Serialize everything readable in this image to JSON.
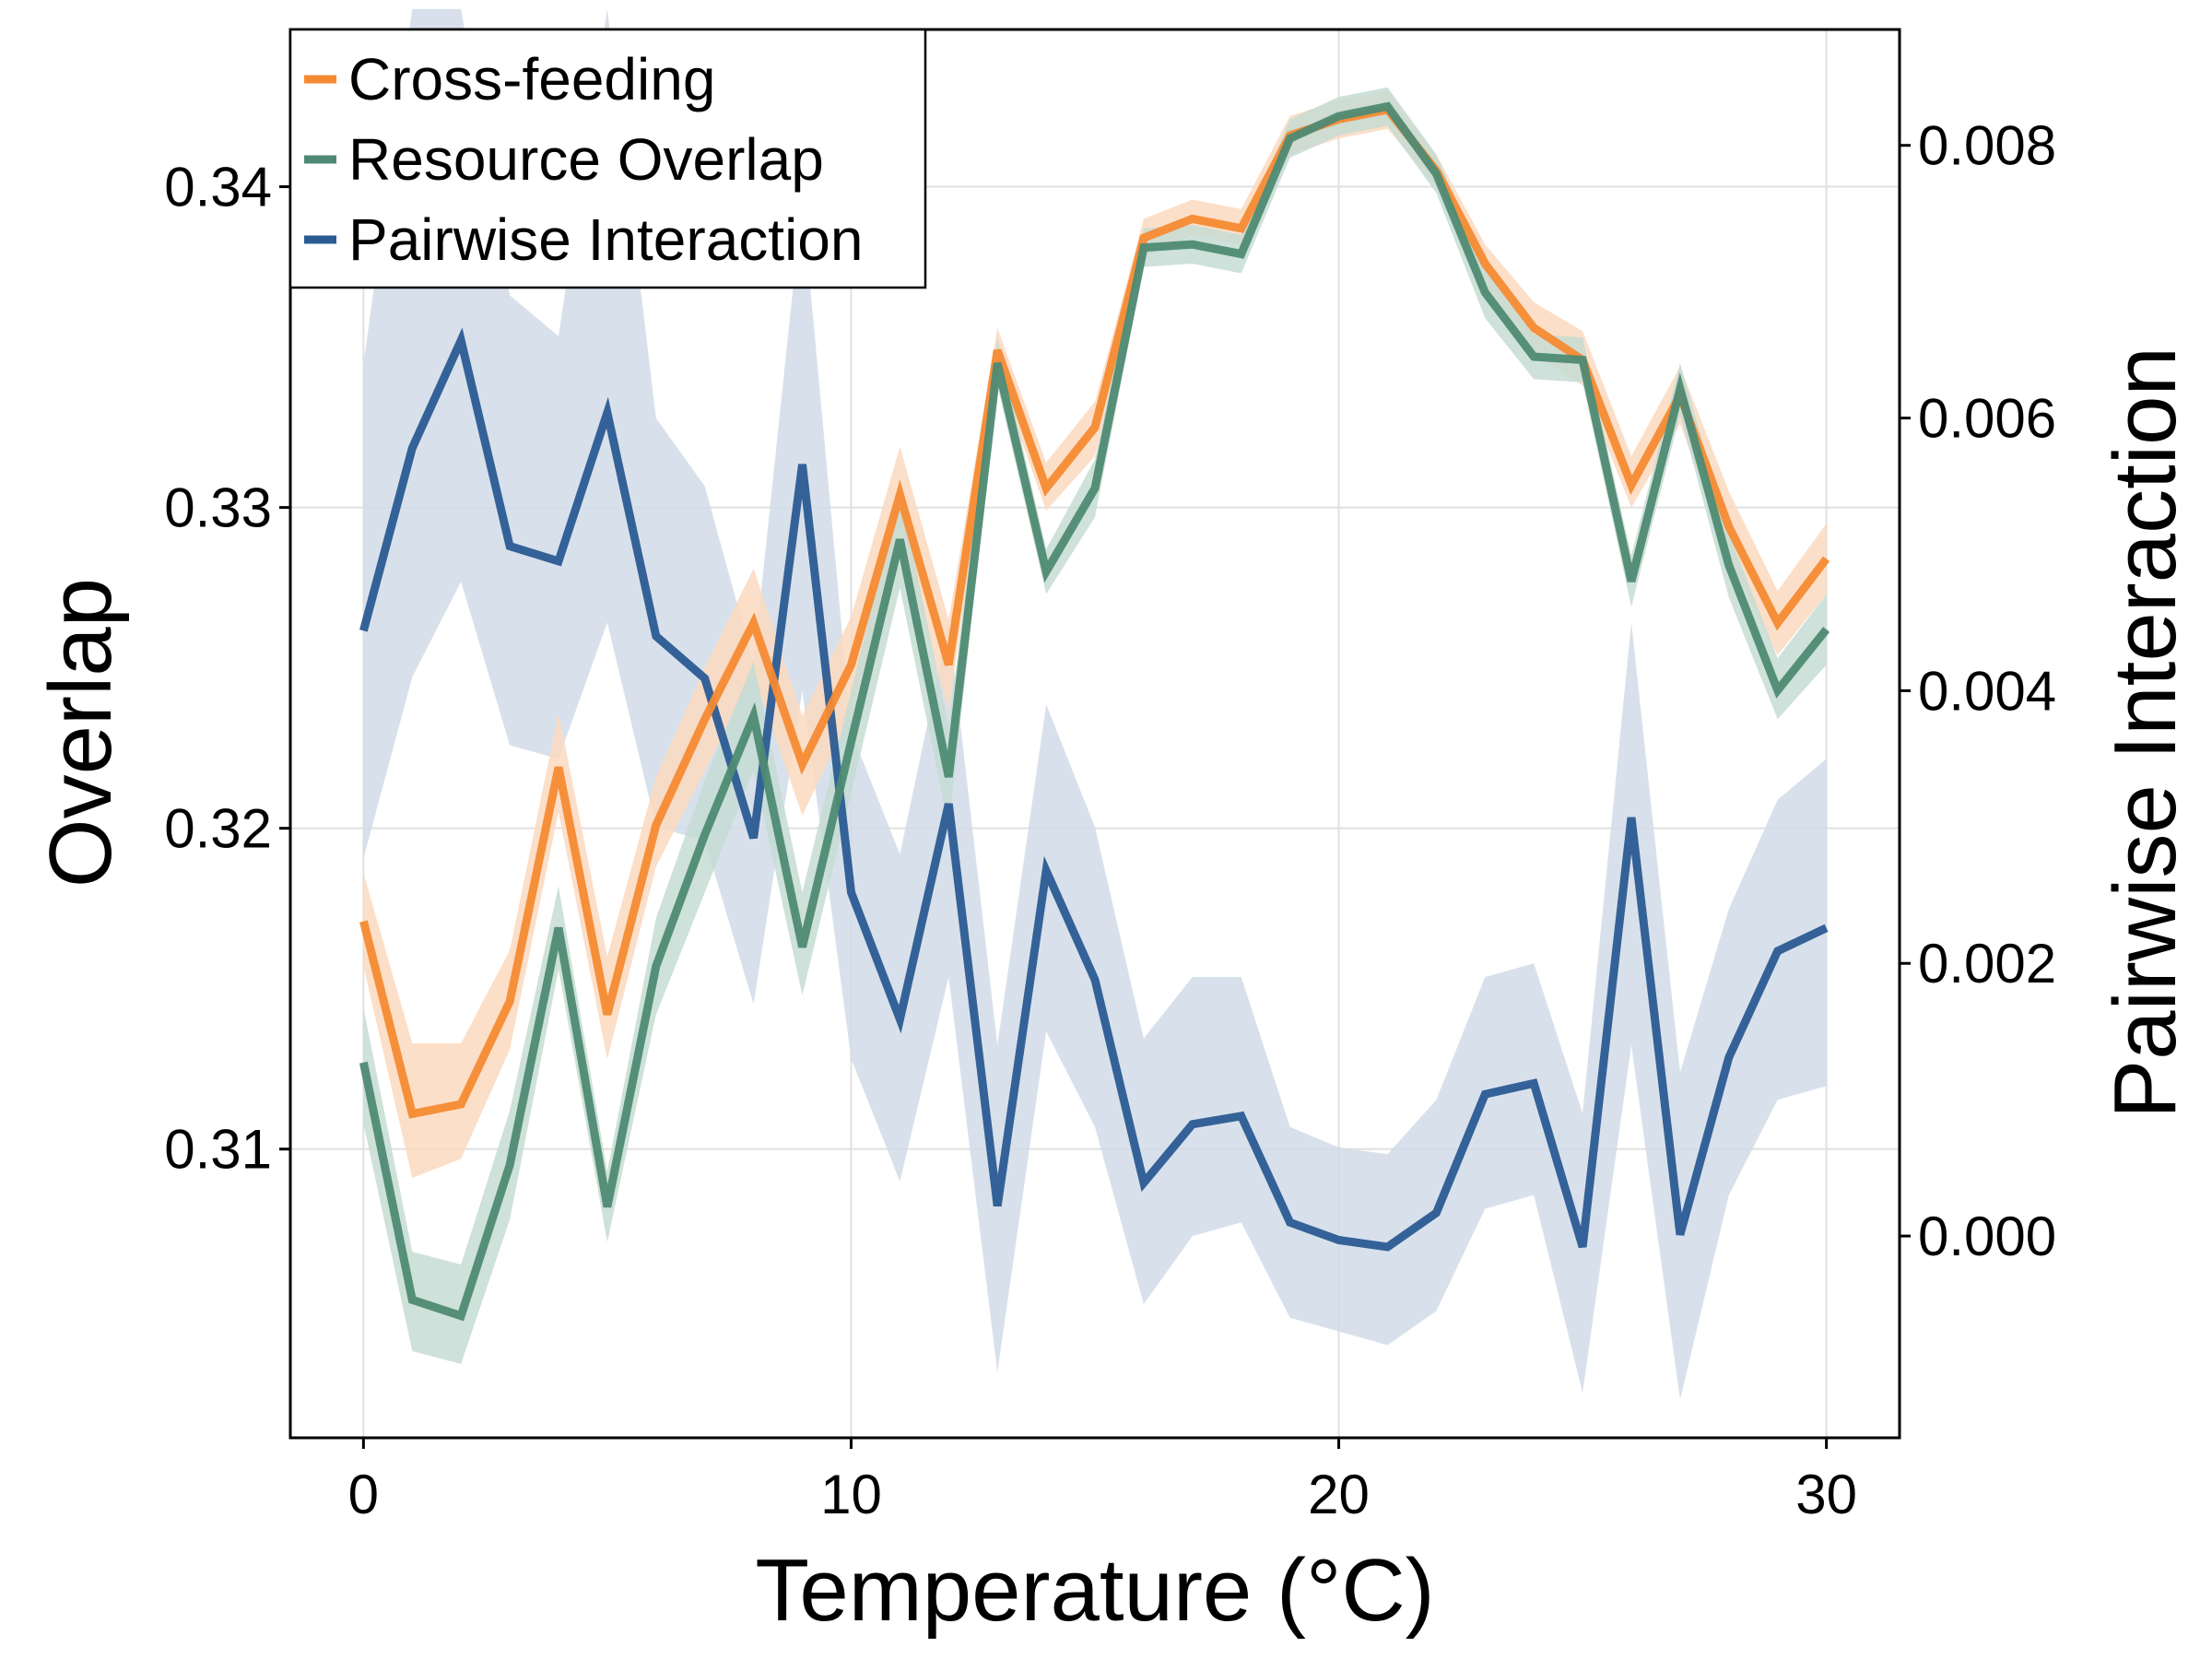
{
  "chart_data": {
    "type": "line",
    "xlabel": "Temperature (°C)",
    "ylabel": "Overlap",
    "y2label": "Pairwise Interaction",
    "xlim": [
      -1.5,
      31.5
    ],
    "ylim": [
      0.301,
      0.3449
    ],
    "y2lim": [
      -0.00148,
      0.00885
    ],
    "xticks": [
      0,
      10,
      20,
      30
    ],
    "xtick_labels": [
      "0",
      "10",
      "20",
      "30"
    ],
    "yticks": [
      0.31,
      0.32,
      0.33,
      0.34
    ],
    "ytick_labels": [
      "0.31",
      "0.32",
      "0.33",
      "0.34"
    ],
    "y2ticks": [
      0.0,
      0.002,
      0.004,
      0.006,
      0.008
    ],
    "y2tick_labels": [
      "0.000",
      "0.002",
      "0.004",
      "0.006",
      "0.008"
    ],
    "grid": true,
    "legend_position": "top-left",
    "x": [
      0,
      1,
      2,
      3,
      4,
      5,
      6,
      7,
      8,
      9,
      10,
      11,
      12,
      13,
      14,
      15,
      16,
      17,
      18,
      19,
      20,
      21,
      22,
      23,
      24,
      25,
      26,
      27,
      28,
      29,
      30
    ],
    "series": [
      {
        "name": "Cross-feeding",
        "axis": "left",
        "color": "#f58a33",
        "band_color": "#fbd9bf",
        "values": [
          0.3171,
          0.3111,
          0.3114,
          0.3146,
          0.3219,
          0.3142,
          0.3201,
          0.3234,
          0.3264,
          0.322,
          0.3251,
          0.3304,
          0.3251,
          0.3349,
          0.3306,
          0.3325,
          0.3384,
          0.339,
          0.3387,
          0.3416,
          0.3421,
          0.3424,
          0.3405,
          0.3376,
          0.3356,
          0.3346,
          0.3307,
          0.3335,
          0.3294,
          0.3264,
          0.3284
        ],
        "lower": [
          0.3157,
          0.3091,
          0.3097,
          0.3131,
          0.3205,
          0.3128,
          0.3188,
          0.3218,
          0.3248,
          0.3204,
          0.3236,
          0.3289,
          0.3237,
          0.3342,
          0.3299,
          0.3316,
          0.3378,
          0.3385,
          0.3382,
          0.341,
          0.3415,
          0.3418,
          0.34,
          0.3369,
          0.3348,
          0.3338,
          0.33,
          0.3326,
          0.3284,
          0.3254,
          0.3273
        ],
        "upper": [
          0.3186,
          0.3133,
          0.3133,
          0.3162,
          0.3236,
          0.316,
          0.3216,
          0.325,
          0.3281,
          0.3235,
          0.3266,
          0.3319,
          0.3265,
          0.3356,
          0.3314,
          0.3333,
          0.339,
          0.3396,
          0.3393,
          0.3422,
          0.3427,
          0.343,
          0.341,
          0.3382,
          0.3364,
          0.3355,
          0.3316,
          0.3344,
          0.3305,
          0.3274,
          0.3295
        ]
      },
      {
        "name": "Resource Overlap",
        "axis": "left",
        "color": "#4e8a73",
        "band_color": "#c6dcd4",
        "values": [
          0.3127,
          0.3053,
          0.3048,
          0.3095,
          0.3169,
          0.3082,
          0.3157,
          0.3198,
          0.3235,
          0.3163,
          0.3227,
          0.329,
          0.3216,
          0.3345,
          0.328,
          0.3306,
          0.3381,
          0.3382,
          0.3379,
          0.3415,
          0.3422,
          0.3425,
          0.3404,
          0.3367,
          0.3347,
          0.3346,
          0.3277,
          0.3337,
          0.3282,
          0.3243,
          0.3262
        ],
        "lower": [
          0.3108,
          0.3037,
          0.3033,
          0.3078,
          0.3156,
          0.3071,
          0.3142,
          0.318,
          0.3218,
          0.3148,
          0.3211,
          0.3275,
          0.32,
          0.3338,
          0.3273,
          0.3297,
          0.3375,
          0.3376,
          0.3373,
          0.3409,
          0.3416,
          0.3419,
          0.3398,
          0.3359,
          0.334,
          0.3339,
          0.3269,
          0.3329,
          0.3272,
          0.3234,
          0.3251
        ],
        "upper": [
          0.3144,
          0.3068,
          0.3064,
          0.3112,
          0.3182,
          0.3093,
          0.3172,
          0.3215,
          0.3252,
          0.318,
          0.3243,
          0.3305,
          0.3232,
          0.3353,
          0.3287,
          0.3315,
          0.3387,
          0.3388,
          0.3385,
          0.3421,
          0.3428,
          0.3431,
          0.341,
          0.3375,
          0.3354,
          0.3353,
          0.3285,
          0.3345,
          0.3292,
          0.3253,
          0.3273
        ]
      },
      {
        "name": "Pairwise Interaction",
        "axis": "right",
        "color": "#2b5b93",
        "band_color": "#d1dce7",
        "values": [
          0.00444,
          0.00578,
          0.00657,
          0.00506,
          0.00495,
          0.00604,
          0.0044,
          0.00409,
          0.00292,
          0.00566,
          0.00252,
          0.00159,
          0.00317,
          0.00022,
          0.00268,
          0.00188,
          0.00039,
          0.00082,
          0.00088,
          0.0001,
          -3e-05,
          -8e-05,
          0.00017,
          0.00104,
          0.00112,
          -8e-05,
          0.00307,
          1e-05,
          0.00131,
          0.00209,
          0.00226
        ],
        "lower": [
          0.00277,
          0.0041,
          0.0048,
          0.0036,
          0.0035,
          0.0045,
          0.003,
          0.0029,
          0.0017,
          0.004,
          0.0013,
          0.0004,
          0.0019,
          -0.001,
          0.0015,
          0.0008,
          -0.0005,
          0.0,
          0.0001,
          -0.0006,
          -0.0007,
          -0.0008,
          -0.00055,
          0.0002,
          0.0003,
          -0.00115,
          0.0014,
          -0.0012,
          0.0003,
          0.001,
          0.0011
        ],
        "upper": [
          0.0064,
          0.009,
          0.009,
          0.0069,
          0.0066,
          0.009,
          0.006,
          0.0055,
          0.0042,
          0.0076,
          0.0037,
          0.0028,
          0.0045,
          0.0014,
          0.0039,
          0.003,
          0.00145,
          0.0019,
          0.0019,
          0.0008,
          0.00065,
          0.0006,
          0.001,
          0.0019,
          0.002,
          0.0009,
          0.0045,
          0.0012,
          0.0024,
          0.0032,
          0.0035
        ]
      }
    ]
  }
}
